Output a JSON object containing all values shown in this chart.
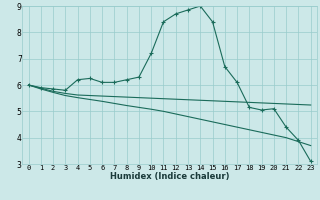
{
  "xlabel": "Humidex (Indice chaleur)",
  "bg_color": "#cce8e8",
  "grid_color": "#99cccc",
  "line_color": "#1a6b5a",
  "x_values": [
    0,
    1,
    2,
    3,
    4,
    5,
    6,
    7,
    8,
    9,
    10,
    11,
    12,
    13,
    14,
    15,
    16,
    17,
    18,
    19,
    20,
    21,
    22,
    23
  ],
  "line_top": [
    6.0,
    5.9,
    5.85,
    5.8,
    6.2,
    6.25,
    6.1,
    6.1,
    6.2,
    6.3,
    7.2,
    8.4,
    8.7,
    8.85,
    9.0,
    8.4,
    6.7,
    6.1,
    5.15,
    5.05,
    5.1,
    4.4,
    3.9,
    3.1
  ],
  "line_mid": [
    6.0,
    5.88,
    5.76,
    5.68,
    5.62,
    5.6,
    5.58,
    5.56,
    5.54,
    5.52,
    5.5,
    5.48,
    5.46,
    5.44,
    5.42,
    5.4,
    5.38,
    5.36,
    5.34,
    5.32,
    5.3,
    5.28,
    5.26,
    5.24
  ],
  "line_bot": [
    6.0,
    5.85,
    5.72,
    5.6,
    5.52,
    5.45,
    5.38,
    5.3,
    5.22,
    5.15,
    5.08,
    5.0,
    4.9,
    4.8,
    4.7,
    4.6,
    4.5,
    4.4,
    4.3,
    4.2,
    4.1,
    4.0,
    3.85,
    3.7
  ],
  "ylim": [
    3,
    9
  ],
  "yticks": [
    3,
    4,
    5,
    6,
    7,
    8,
    9
  ],
  "xlim": [
    -0.5,
    23.5
  ],
  "xticks": [
    0,
    1,
    2,
    3,
    4,
    5,
    6,
    7,
    8,
    9,
    10,
    11,
    12,
    13,
    14,
    15,
    16,
    17,
    18,
    19,
    20,
    21,
    22,
    23
  ],
  "xlabel_fontsize": 6,
  "tick_fontsize": 5,
  "ytick_fontsize": 5.5
}
